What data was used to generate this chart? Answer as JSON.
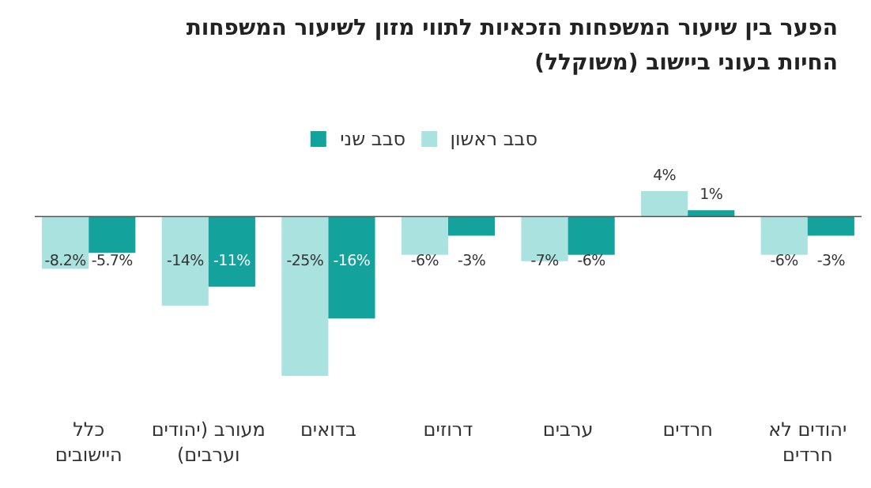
{
  "chart_data": {
    "type": "bar",
    "title": "הפער בין שיעור המשפחות הזכאיות לתווי מזון לשיעור המשפחות החיות בעוני ביישוב (משוקלל)",
    "categories": [
      "כלל היישובים",
      "מעורב (יהודים וערבים)",
      "בדואים",
      "דרוזים",
      "ערבים",
      "חרדים",
      "יהודים לא חרדים"
    ],
    "series": [
      {
        "name": "סבב ראשון",
        "color": "#a9e2df",
        "values": [
          -8.2,
          -14,
          -25,
          -6,
          -7,
          4,
          -6
        ],
        "value_labels": [
          "-8.2%",
          "-14%",
          "-25%",
          "-6%",
          "-7%",
          "4%",
          "-6%"
        ]
      },
      {
        "name": "סבב שני",
        "color": "#14a39c",
        "values": [
          -5.7,
          -11,
          -16,
          -3,
          -6,
          1,
          -3
        ],
        "value_labels": [
          "-5.7%",
          "-11%",
          "-16%",
          "-3%",
          "-6%",
          "1%",
          "-3%"
        ]
      }
    ],
    "legend": "top"
  }
}
